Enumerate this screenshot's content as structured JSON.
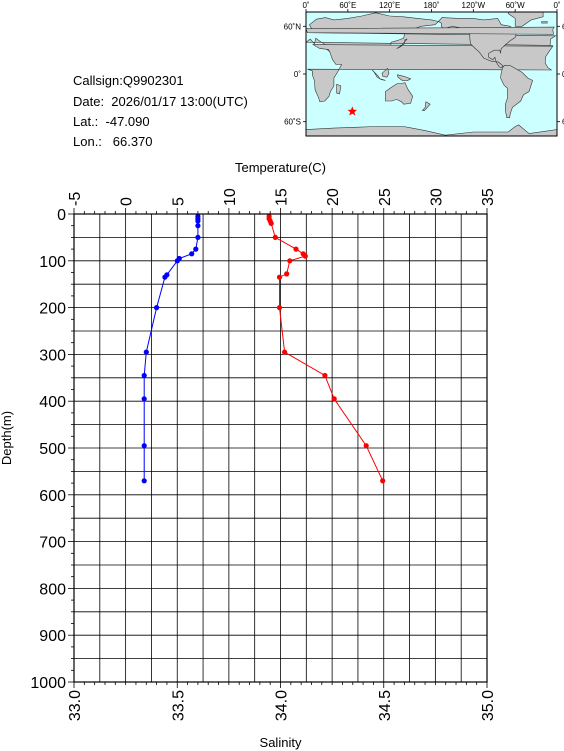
{
  "info": {
    "callsign": "Callsign:Q9902301",
    "date": "Date:  2026/01/17 13:00(UTC)",
    "lat": "Lat.:  -47.090",
    "lon": "Lon.:   66.370"
  },
  "map": {
    "lon_labels": [
      "0˚",
      "60˚E",
      "120˚E",
      "180˚",
      "120˚W",
      "60˚W",
      "0˚"
    ],
    "lat_labels": [
      "60˚N",
      "0˚",
      "60˚S"
    ],
    "float_lat": -47.09,
    "float_lon": 66.37,
    "ocean_color": "#ccffff",
    "land_color": "#c8c8c8",
    "marker_color": "#ff0000"
  },
  "chart_data": {
    "type": "line",
    "ylabel": "Depth(m)",
    "y_ticks": [
      "0",
      "100",
      "200",
      "300",
      "400",
      "500",
      "600",
      "700",
      "800",
      "900",
      "1000"
    ],
    "ylim": [
      0,
      1000
    ],
    "y_inverted": true,
    "top_axis": {
      "label": "Temperature(C)",
      "ticks": [
        "-5",
        "0",
        "5",
        "10",
        "15",
        "20",
        "25",
        "30",
        "35"
      ],
      "range": [
        -5,
        35
      ]
    },
    "bottom_axis": {
      "label": "Salinity",
      "ticks": [
        "33.0",
        "33.5",
        "34.0",
        "34.5",
        "35.0"
      ],
      "range": [
        33.0,
        35.0
      ]
    },
    "grid": true,
    "series": [
      {
        "axis": "salinity",
        "color": "#0000ff",
        "points": [
          [
            33.6,
            5
          ],
          [
            33.6,
            10
          ],
          [
            33.6,
            15
          ],
          [
            33.6,
            25
          ],
          [
            33.6,
            50
          ],
          [
            33.59,
            75
          ],
          [
            33.57,
            85
          ],
          [
            33.51,
            95
          ],
          [
            33.5,
            100
          ],
          [
            33.45,
            130
          ],
          [
            33.44,
            135
          ],
          [
            33.4,
            200
          ],
          [
            33.35,
            295
          ],
          [
            33.34,
            345
          ],
          [
            33.34,
            395
          ],
          [
            33.34,
            495
          ],
          [
            33.34,
            570
          ]
        ]
      },
      {
        "axis": "temperature",
        "color": "#ff0000",
        "points": [
          [
            13.9,
            5
          ],
          [
            13.9,
            10
          ],
          [
            14.0,
            15
          ],
          [
            14.1,
            20
          ],
          [
            14.5,
            50
          ],
          [
            16.5,
            75
          ],
          [
            17.2,
            85
          ],
          [
            17.4,
            90
          ],
          [
            15.9,
            100
          ],
          [
            15.6,
            128
          ],
          [
            14.9,
            135
          ],
          [
            14.9,
            200
          ],
          [
            15.4,
            295
          ],
          [
            19.3,
            345
          ],
          [
            20.2,
            395
          ],
          [
            23.3,
            495
          ],
          [
            24.9,
            570
          ]
        ]
      }
    ]
  }
}
